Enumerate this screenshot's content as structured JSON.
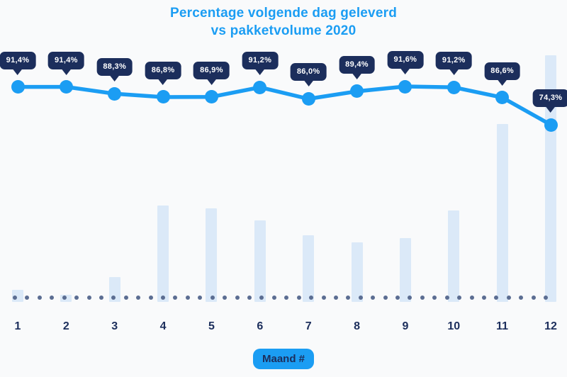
{
  "title": {
    "line1": "Percentage volgende dag geleverd",
    "line2": "vs pakketvolume 2020"
  },
  "x_axis": {
    "label_badge": "Maand #",
    "categories": [
      "1",
      "2",
      "3",
      "4",
      "5",
      "6",
      "7",
      "8",
      "9",
      "10",
      "11",
      "12"
    ]
  },
  "chart_data": {
    "type": "combo",
    "title": "Percentage volgende dag geleverd vs pakketvolume 2020",
    "xlabel": "Maand #",
    "ylabel": "",
    "categories": [
      "1",
      "2",
      "3",
      "4",
      "5",
      "6",
      "7",
      "8",
      "9",
      "10",
      "11",
      "12"
    ],
    "grid": false,
    "legend_position": "none",
    "series": [
      {
        "name": "Percentage volgende dag geleverd",
        "type": "line",
        "unit": "%",
        "values": [
          91.4,
          91.4,
          88.3,
          86.8,
          86.9,
          91.2,
          86.0,
          89.4,
          91.6,
          91.2,
          86.6,
          74.3
        ],
        "point_labels": [
          "91,4%",
          "91,4%",
          "88,3%",
          "86,8%",
          "86,9%",
          "91,2%",
          "86,0%",
          "89,4%",
          "91,6%",
          "91,2%",
          "86,6%",
          "74,3%"
        ],
        "approx_range_shown": [
          74.3,
          91.6
        ]
      },
      {
        "name": "Pakketvolume 2020",
        "type": "bar",
        "unit": "relative volume index (unlabeled axis, estimated, max month = 100)",
        "values": [
          5,
          3,
          10,
          39,
          38,
          33,
          27,
          24,
          26,
          37,
          72,
          100
        ]
      }
    ]
  },
  "colors": {
    "accent_blue": "#1b9df3",
    "navy": "#1c2e5c",
    "bar_fill": "#dbe9f8",
    "baseline_dot": "#5b6d92",
    "background": "#f9fafb",
    "tooltip_text": "#ffffff"
  }
}
